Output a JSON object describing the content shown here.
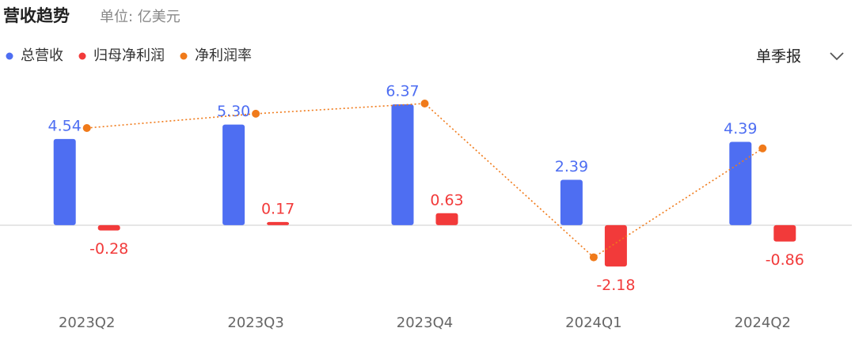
{
  "chart_data": {
    "type": "bar",
    "title": "营收趋势",
    "subtitle": "单位: 亿美元",
    "period_selector": "单季报",
    "categories": [
      "2023Q2",
      "2023Q3",
      "2023Q4",
      "2024Q1",
      "2024Q2"
    ],
    "series": [
      {
        "name": "总营收",
        "type": "bar",
        "color": "#4e6ef2",
        "values": [
          4.54,
          5.3,
          6.37,
          2.39,
          4.39
        ],
        "value_labels": [
          "4.54",
          "5.30",
          "6.37",
          "2.39",
          "4.39"
        ]
      },
      {
        "name": "归母净利润",
        "type": "bar",
        "color": "#f23a3a",
        "values": [
          -0.28,
          0.17,
          0.63,
          -2.18,
          -0.86
        ]
      },
      {
        "name": "净利润率",
        "type": "line",
        "axis": "y2",
        "color": "#f07a1a",
        "values": [
          -6.2,
          3.2,
          9.9,
          -91.2,
          -19.6
        ]
      }
    ],
    "ylim": [
      -4,
      7.7
    ],
    "y2lim": [
      -120,
      26
    ],
    "legend": "top-left"
  }
}
